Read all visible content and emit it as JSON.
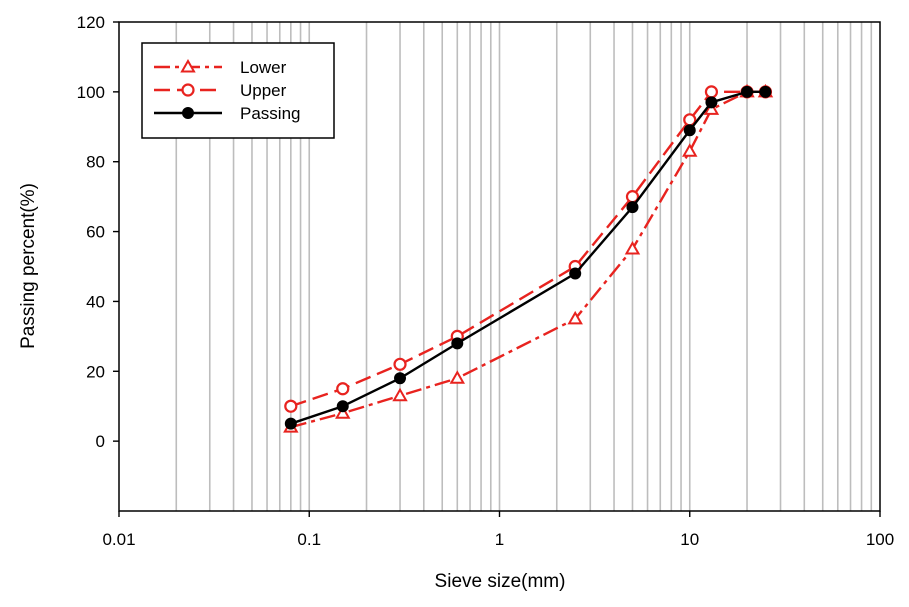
{
  "chart_data": {
    "type": "line",
    "xlabel": "Sieve size(mm)",
    "ylabel": "Passing percent(%)",
    "x_scale": "log",
    "xlim": [
      0.01,
      100
    ],
    "ylim": [
      -20,
      120
    ],
    "x_ticks": [
      0.01,
      0.1,
      1,
      10,
      100
    ],
    "x_tick_labels": [
      "0.01",
      "0.1",
      "1",
      "10",
      "100"
    ],
    "y_ticks": [
      0,
      20,
      40,
      60,
      80,
      100,
      120
    ],
    "y_tick_labels": [
      "0",
      "20",
      "40",
      "60",
      "80",
      "100",
      "120"
    ],
    "grid": "vertical-log",
    "legend_position": "top-left",
    "series": [
      {
        "name": "Lower",
        "color": "#e8231f",
        "marker": "triangle-open",
        "line_style": "dash-dot",
        "x": [
          0.08,
          0.15,
          0.3,
          0.6,
          2.5,
          5,
          10,
          13,
          20,
          25
        ],
        "y": [
          4,
          8,
          13,
          18,
          35,
          55,
          83,
          95,
          100,
          100
        ]
      },
      {
        "name": "Upper",
        "color": "#e8231f",
        "marker": "circle-open",
        "line_style": "long-dash",
        "x": [
          0.08,
          0.15,
          0.3,
          0.6,
          2.5,
          5,
          10,
          13,
          20,
          25
        ],
        "y": [
          10,
          15,
          22,
          30,
          50,
          70,
          92,
          100,
          100,
          100
        ]
      },
      {
        "name": "Passing",
        "color": "#000000",
        "marker": "circle-filled",
        "line_style": "solid",
        "x": [
          0.08,
          0.15,
          0.3,
          0.6,
          2.5,
          5,
          10,
          13,
          20,
          25
        ],
        "y": [
          5,
          10,
          18,
          28,
          48,
          67,
          89,
          97,
          100,
          100
        ]
      }
    ]
  }
}
